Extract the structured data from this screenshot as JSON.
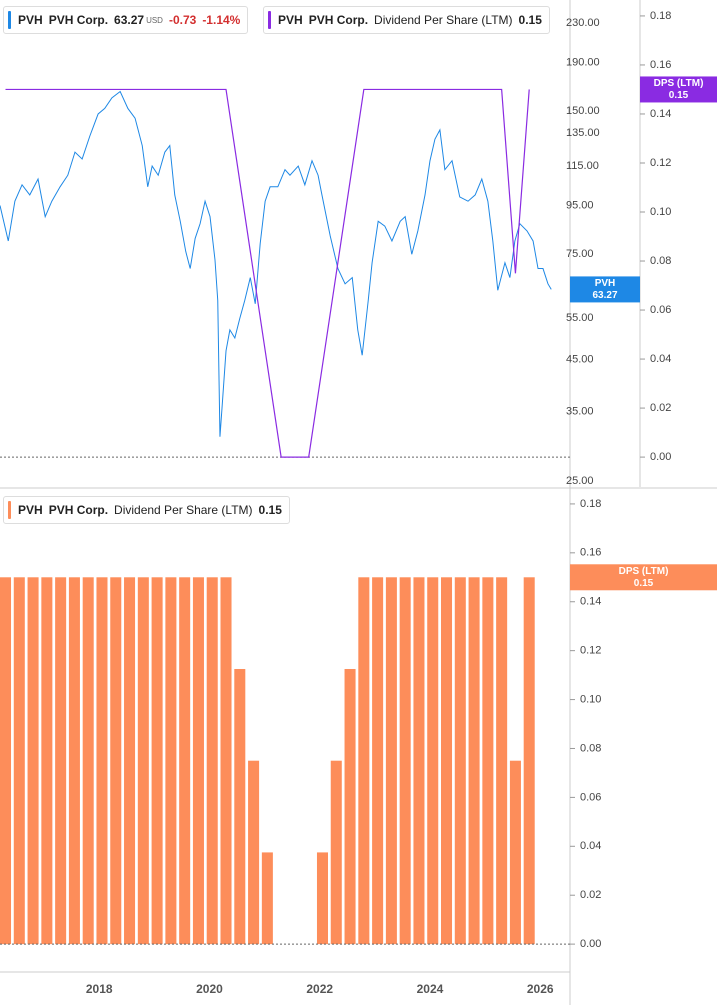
{
  "chart_data": [
    {
      "type": "line",
      "ylog": true,
      "ylim": [
        24.3,
        257
      ],
      "yticks": [
        {
          "value": 230,
          "label": "230.00"
        },
        {
          "value": 190,
          "label": "190.00"
        },
        {
          "value": 150,
          "label": "150.00"
        },
        {
          "value": 135,
          "label": "135.00"
        },
        {
          "value": 115,
          "label": "115.00"
        },
        {
          "value": 95,
          "label": "95.00"
        },
        {
          "value": 75,
          "label": "75.00"
        },
        {
          "value": 55,
          "label": "55.00"
        },
        {
          "value": 45,
          "label": "45.00"
        },
        {
          "value": 35,
          "label": "35.00"
        },
        {
          "value": 25,
          "label": "25.00"
        }
      ],
      "y2lim": [
        -0.0122,
        0.1865
      ],
      "y2ticks": [
        0.18,
        0.16,
        0.14,
        0.12,
        {
          "value": 0.1,
          "label": "0.10"
        },
        0.08,
        0.06,
        0.04,
        0.02,
        {
          "value": 0,
          "label": "0.00"
        }
      ],
      "xlim": [
        2016.2,
        2026.54
      ],
      "series": [
        {
          "symbol": "PVH",
          "name": "PVH Corp.",
          "currency": "USD",
          "change": "-0.73",
          "change_percent": "-1.14%",
          "flag_label": "PVH",
          "axis": "y",
          "color": "#1e88e5",
          "x": [
            2016.2,
            2016.35,
            2016.47,
            2016.6,
            2016.74,
            2016.89,
            2017.02,
            2017.14,
            2017.29,
            2017.43,
            2017.56,
            2017.69,
            2017.83,
            2017.98,
            2018.1,
            2018.23,
            2018.38,
            2018.52,
            2018.65,
            2018.78,
            2018.88,
            2018.96,
            2019.07,
            2019.19,
            2019.28,
            2019.37,
            2019.47,
            2019.57,
            2019.65,
            2019.74,
            2019.83,
            2019.92,
            2020.01,
            2020.1,
            2020.15,
            2020.19,
            2020.23,
            2020.3,
            2020.37,
            2020.46,
            2020.55,
            2020.64,
            2020.74,
            2020.83,
            2020.92,
            2021.01,
            2021.1,
            2021.24,
            2021.37,
            2021.46,
            2021.61,
            2021.73,
            2021.86,
            2021.97,
            2022.04,
            2022.19,
            2022.33,
            2022.46,
            2022.59,
            2022.69,
            2022.77,
            2022.88,
            2022.95,
            2023.06,
            2023.18,
            2023.31,
            2023.46,
            2023.55,
            2023.67,
            2023.78,
            2023.91,
            2024.0,
            2024.09,
            2024.18,
            2024.27,
            2024.4,
            2024.54,
            2024.69,
            2024.82,
            2024.94,
            2025.05,
            2025.14,
            2025.23,
            2025.36,
            2025.45,
            2025.54,
            2025.63,
            2025.76,
            2025.87,
            2025.96,
            2026.05,
            2026.14,
            2026.2
          ],
          "values": [
            95,
            80,
            97,
            105,
            100,
            108,
            90,
            97,
            104,
            110,
            123,
            119,
            133,
            148,
            152,
            160,
            165,
            152,
            145,
            127,
            104,
            115,
            110,
            123,
            127,
            100,
            88,
            76,
            70,
            81,
            87,
            97,
            90,
            73,
            60,
            31,
            36,
            47,
            52,
            50,
            55,
            60,
            67,
            59,
            79,
            97,
            104,
            104,
            113,
            110,
            115,
            105,
            118,
            110,
            100,
            82,
            70,
            65,
            67,
            52,
            46,
            60,
            72,
            88,
            86,
            80,
            88,
            90,
            75,
            84,
            100,
            118,
            131,
            137,
            113,
            118,
            99,
            97,
            100,
            108,
            97,
            80,
            63,
            72,
            67,
            80,
            87,
            84,
            80,
            70,
            70,
            65,
            63.27
          ]
        },
        {
          "symbol": "PVH",
          "name": "PVH Corp.",
          "metric": "Dividend Per Share (LTM)",
          "flag_label": "DPS (LTM)",
          "axis": "y2",
          "color": "#8a2be2",
          "x": [
            2016.3,
            2016.55,
            2016.8,
            2017.05,
            2017.3,
            2017.55,
            2017.8,
            2018.05,
            2018.3,
            2018.55,
            2018.8,
            2019.05,
            2019.3,
            2019.55,
            2019.8,
            2020.05,
            2020.3,
            2020.55,
            2020.8,
            2021.05,
            2021.3,
            2021.55,
            2021.8,
            2022.05,
            2022.3,
            2022.55,
            2022.8,
            2023.05,
            2023.3,
            2023.55,
            2023.8,
            2024.05,
            2024.3,
            2024.55,
            2024.8,
            2025.05,
            2025.3,
            2025.55,
            2025.8
          ],
          "values": [
            0.15,
            0.15,
            0.15,
            0.15,
            0.15,
            0.15,
            0.15,
            0.15,
            0.15,
            0.15,
            0.15,
            0.15,
            0.15,
            0.15,
            0.15,
            0.15,
            0.15,
            0.1125,
            0.075,
            0.0375,
            0,
            0,
            0,
            0.0375,
            0.075,
            0.1125,
            0.15,
            0.15,
            0.15,
            0.15,
            0.15,
            0.15,
            0.15,
            0.15,
            0.15,
            0.15,
            0.15,
            0.075,
            0.15
          ]
        }
      ]
    },
    {
      "type": "bar",
      "ylim": [
        -0.0114,
        0.1861
      ],
      "yticks": [
        0.18,
        0.16,
        0.14,
        0.12,
        {
          "value": 0.1,
          "label": "0.10"
        },
        0.08,
        0.06,
        0.04,
        0.02,
        {
          "value": 0,
          "label": "0.00"
        }
      ],
      "xlim": [
        2016.2,
        2026.54
      ],
      "xticks": [
        2018,
        2020,
        2022,
        2024,
        2026
      ],
      "series": [
        {
          "symbol": "PVH",
          "name": "PVH Corp.",
          "metric": "Dividend Per Share (LTM)",
          "flag_label": "DPS (LTM)",
          "color": "#fd8d5a",
          "x": [
            2016.3,
            2016.55,
            2016.8,
            2017.05,
            2017.3,
            2017.55,
            2017.8,
            2018.05,
            2018.3,
            2018.55,
            2018.8,
            2019.05,
            2019.3,
            2019.55,
            2019.8,
            2020.05,
            2020.3,
            2020.55,
            2020.8,
            2021.05,
            2021.3,
            2021.55,
            2021.8,
            2022.05,
            2022.3,
            2022.55,
            2022.8,
            2023.05,
            2023.3,
            2023.55,
            2023.8,
            2024.05,
            2024.3,
            2024.55,
            2024.8,
            2025.05,
            2025.3,
            2025.55,
            2025.8
          ],
          "values": [
            0.15,
            0.15,
            0.15,
            0.15,
            0.15,
            0.15,
            0.15,
            0.15,
            0.15,
            0.15,
            0.15,
            0.15,
            0.15,
            0.15,
            0.15,
            0.15,
            0.15,
            0.1125,
            0.075,
            0.0375,
            0,
            0,
            0,
            0.0375,
            0.075,
            0.1125,
            0.15,
            0.15,
            0.15,
            0.15,
            0.15,
            0.15,
            0.15,
            0.15,
            0.15,
            0.15,
            0.15,
            0.075,
            0.15
          ]
        }
      ]
    }
  ]
}
